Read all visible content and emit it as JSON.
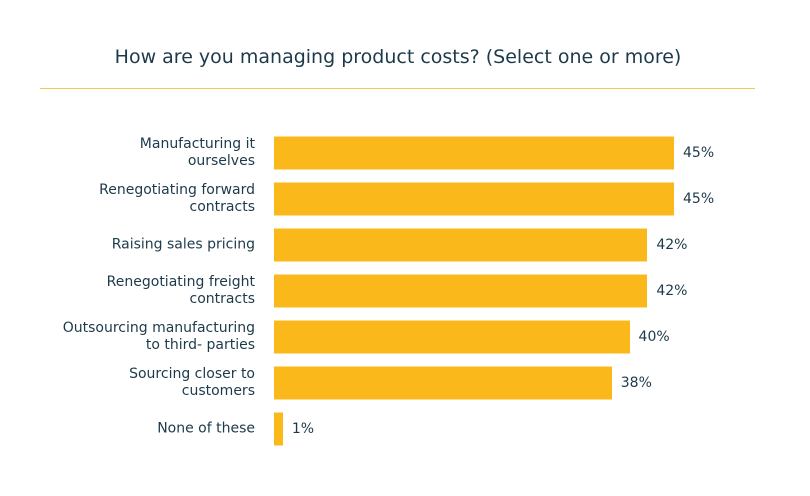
{
  "chart_data": {
    "type": "bar",
    "orientation": "horizontal",
    "title": "How are you managing product costs? (Select one or more)",
    "categories": [
      "Manufacturing it\nourselves",
      "Renegotiating forward\ncontracts",
      "Raising sales pricing",
      "Renegotiating freight\ncontracts",
      "Outsourcing manufacturing\nto third- parties",
      "Sourcing closer to\ncustomers",
      "None of these"
    ],
    "values": [
      45,
      45,
      42,
      42,
      40,
      38,
      1
    ],
    "value_labels": [
      "45%",
      "45%",
      "42%",
      "42%",
      "40%",
      "38%",
      "1%"
    ],
    "color": "#fbb81b"
  }
}
